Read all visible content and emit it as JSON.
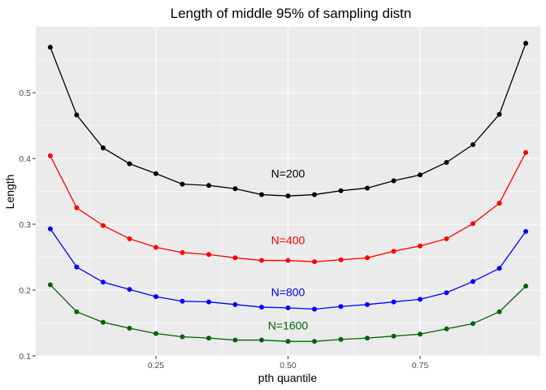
{
  "chart_data": {
    "type": "line",
    "title": "Length of middle 95% of sampling distn",
    "xlabel": "pth quantile",
    "ylabel": "Length",
    "xlim": [
      0.0225,
      0.9775
    ],
    "ylim": [
      0.1,
      0.6
    ],
    "x_ticks": [
      0.25,
      0.5,
      0.75
    ],
    "x_tick_labels": [
      "0.25",
      "0.50",
      "0.75"
    ],
    "y_ticks": [
      0.1,
      0.2,
      0.3,
      0.4,
      0.5
    ],
    "y_tick_labels": [
      "0.1",
      "0.2",
      "0.3",
      "0.4",
      "0.5"
    ],
    "x": [
      0.05,
      0.1,
      0.15,
      0.2,
      0.25,
      0.3,
      0.35,
      0.4,
      0.45,
      0.5,
      0.55,
      0.6,
      0.65,
      0.7,
      0.75,
      0.8,
      0.85,
      0.9,
      0.95
    ],
    "series": [
      {
        "name": "N=200",
        "color": "#000000",
        "label_x": 0.5,
        "label_y": 0.377,
        "values": [
          0.569,
          0.466,
          0.416,
          0.392,
          0.377,
          0.361,
          0.359,
          0.354,
          0.345,
          0.343,
          0.345,
          0.351,
          0.355,
          0.366,
          0.375,
          0.394,
          0.421,
          0.467,
          0.575
        ]
      },
      {
        "name": "N=400",
        "color": "#ff0000",
        "label_x": 0.5,
        "label_y": 0.276,
        "values": [
          0.404,
          0.325,
          0.298,
          0.278,
          0.265,
          0.257,
          0.254,
          0.249,
          0.245,
          0.245,
          0.243,
          0.246,
          0.249,
          0.259,
          0.267,
          0.278,
          0.301,
          0.332,
          0.409
        ]
      },
      {
        "name": "N=800",
        "color": "#0000ff",
        "label_x": 0.5,
        "label_y": 0.197,
        "values": [
          0.293,
          0.235,
          0.212,
          0.201,
          0.19,
          0.183,
          0.182,
          0.178,
          0.174,
          0.173,
          0.171,
          0.175,
          0.178,
          0.182,
          0.186,
          0.196,
          0.213,
          0.233,
          0.289
        ]
      },
      {
        "name": "N=1600",
        "color": "#006400",
        "label_x": 0.5,
        "label_y": 0.146,
        "values": [
          0.208,
          0.167,
          0.151,
          0.142,
          0.134,
          0.129,
          0.127,
          0.124,
          0.124,
          0.122,
          0.122,
          0.125,
          0.127,
          0.13,
          0.133,
          0.141,
          0.149,
          0.167,
          0.206
        ]
      }
    ]
  }
}
